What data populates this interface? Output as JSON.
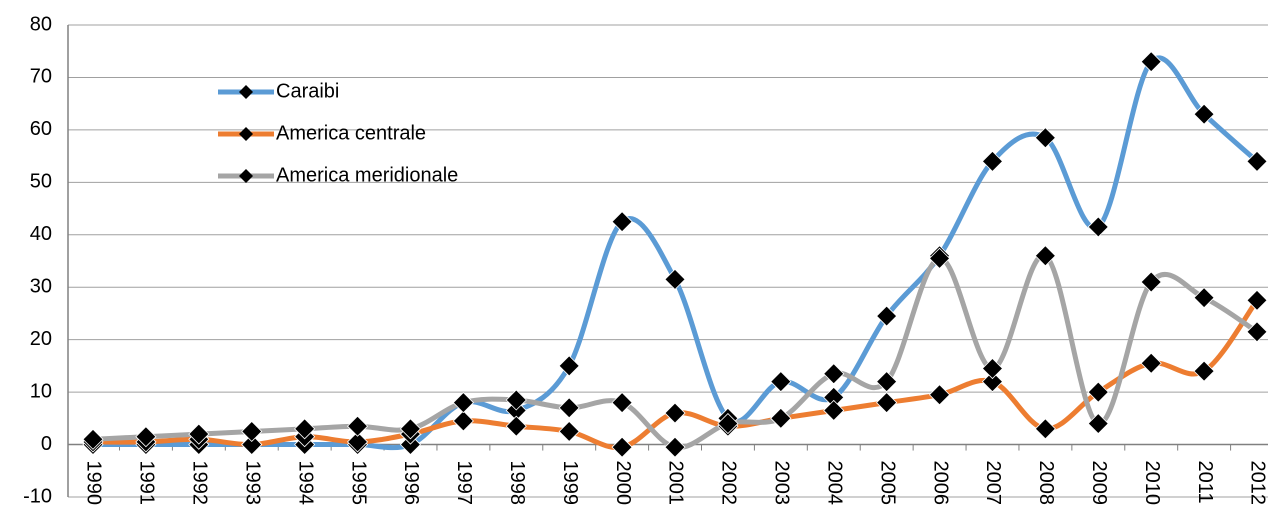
{
  "chart_data": {
    "type": "line",
    "categories": [
      "1990",
      "1991",
      "1992",
      "1993",
      "1994",
      "1995",
      "1996",
      "1997",
      "1998",
      "1999",
      "2000",
      "2001",
      "2002",
      "2003",
      "2004",
      "2005",
      "2006",
      "2007",
      "2008",
      "2009",
      "2010",
      "2011",
      "2012"
    ],
    "series": [
      {
        "name": "Caraibi",
        "color": "#5b9bd5",
        "values": [
          0,
          0,
          0,
          0,
          0,
          0,
          0,
          8,
          6.5,
          15,
          42.5,
          31.5,
          5,
          12,
          9,
          24.5,
          36,
          54,
          58.5,
          41.5,
          73,
          63,
          54
        ]
      },
      {
        "name": "America centrale",
        "color": "#ed7d31",
        "values": [
          0.5,
          0.5,
          1,
          0,
          1.5,
          0.5,
          2,
          4.5,
          3.5,
          2.5,
          -0.5,
          6,
          3.5,
          5,
          6.5,
          8,
          9.5,
          12,
          3,
          10,
          15.5,
          14,
          27.5
        ]
      },
      {
        "name": "America meridionale",
        "color": "#a5a5a5",
        "values": [
          1,
          1.5,
          2,
          2.5,
          3,
          3.5,
          3,
          8,
          8.5,
          7,
          8,
          -0.5,
          4,
          5,
          13.5,
          12,
          35.5,
          14.5,
          36,
          4,
          31,
          28,
          21.5
        ]
      }
    ],
    "ylim": [
      -10,
      80
    ],
    "yticks": [
      -10,
      0,
      10,
      20,
      30,
      40,
      50,
      60,
      70,
      80
    ],
    "grid": true,
    "legend": "upper left",
    "smooth": true,
    "marker_color": "#000000"
  }
}
